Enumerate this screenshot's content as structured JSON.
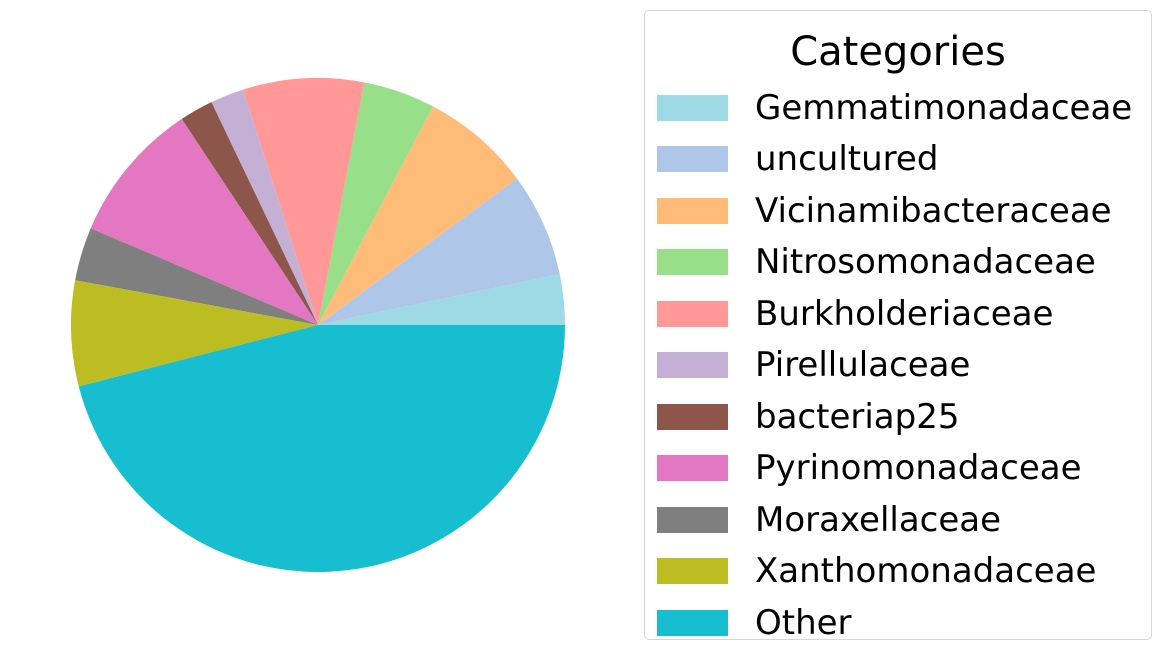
{
  "chart_data": {
    "type": "pie",
    "start_angle_deg": 0,
    "direction": "counterclockwise",
    "legend": {
      "title": "Categories",
      "placement": "right"
    },
    "slices": [
      {
        "label": "Gemmatimonadaceae",
        "value": 3.3,
        "color": "#9edae5"
      },
      {
        "label": "uncultured",
        "value": 6.8,
        "color": "#aec7e8"
      },
      {
        "label": "Vicinamibacteraceae",
        "value": 7.2,
        "color": "#ffbb78"
      },
      {
        "label": "Nitrosomonadaceae",
        "value": 4.7,
        "color": "#98df8a"
      },
      {
        "label": "Burkholderiaceae",
        "value": 7.9,
        "color": "#ff9896"
      },
      {
        "label": "Pirellulaceae",
        "value": 2.2,
        "color": "#c5b0d5"
      },
      {
        "label": "bacteriap25",
        "value": 2.2,
        "color": "#8c564b"
      },
      {
        "label": "Pyrinomonadaceae",
        "value": 9.3,
        "color": "#e377c2"
      },
      {
        "label": "Moraxellaceae",
        "value": 3.5,
        "color": "#7f7f7f"
      },
      {
        "label": "Xanthomonadaceae",
        "value": 6.9,
        "color": "#bcbd22"
      },
      {
        "label": "Other",
        "value": 46.0,
        "color": "#17becf"
      }
    ]
  }
}
